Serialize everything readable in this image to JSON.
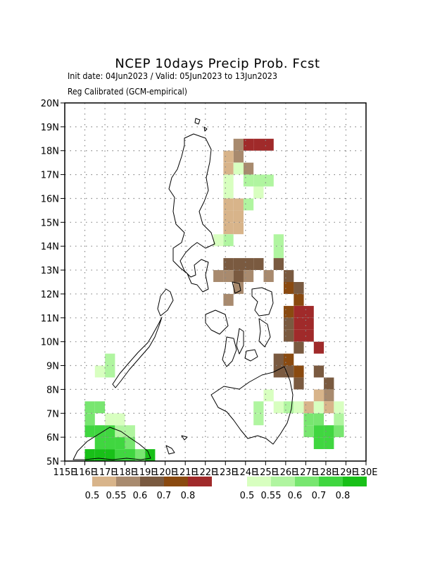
{
  "title": "NCEP 10days Precip Prob. Fcst",
  "subtitle_1": "Init date: 04Jun2023 / Valid: 05Jun2023 to 13Jun2023",
  "subtitle_2": "Reg Calibrated (GCM-empirical)",
  "colors": {
    "dry": [
      "#d8b48a",
      "#a88a6e",
      "#7a5a40",
      "#8a4a10",
      "#a02a2a"
    ],
    "wet": [
      "#d8ffc0",
      "#b0f5a0",
      "#78e670",
      "#40d640",
      "#18c018"
    ],
    "frame": "#000000",
    "grid": "#888888"
  },
  "map": {
    "lon_range": [
      115,
      130
    ],
    "lat_range": [
      5,
      20
    ],
    "lon_ticks": [
      "115E",
      "116E",
      "117E",
      "118E",
      "119E",
      "120E",
      "121E",
      "122E",
      "123E",
      "124E",
      "125E",
      "126E",
      "127E",
      "128E",
      "129E",
      "130E"
    ],
    "lat_ticks": [
      "5N",
      "6N",
      "7N",
      "8N",
      "9N",
      "10N",
      "11N",
      "12N",
      "13N",
      "14N",
      "15N",
      "16N",
      "17N",
      "18N",
      "19N",
      "20N"
    ],
    "grid": "dotted 1-degree"
  },
  "legend": {
    "dry_labels": [
      "0.5",
      "0.55",
      "0.6",
      "0.7",
      "0.8"
    ],
    "wet_labels": [
      "0.5",
      "0.55",
      "0.6",
      "0.7",
      "0.8"
    ]
  }
}
